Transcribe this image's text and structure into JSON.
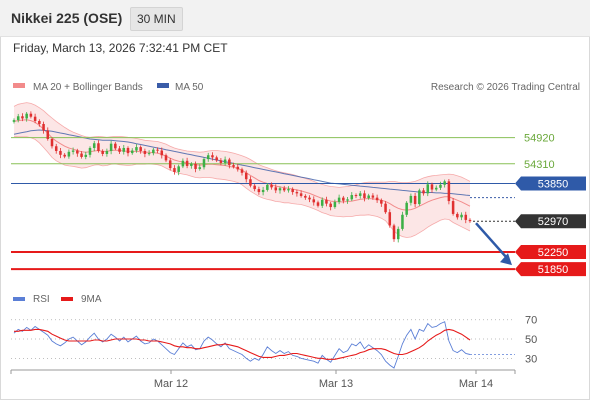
{
  "header": {
    "title": "Nikkei 225 (OSE)",
    "interval": "30 MIN"
  },
  "timestamp": "Friday, March 13, 2026 7:32:41 PM CET",
  "colors": {
    "bollinger": "#f28b8b",
    "ma50": "#3a5ca8",
    "green_level": "#88c057",
    "pivot": "#2f5aa8",
    "support": "#e61a1a",
    "up": "#3cb046",
    "down": "#e03030",
    "rsi": "#5b7fd6",
    "rsi_ma": "#e61a1a"
  },
  "chart_data": [
    {
      "type": "candlestick",
      "title": "",
      "legend": {
        "placement": "top-left",
        "items": [
          {
            "name": "MA 20 + Bollinger Bands",
            "color": "#f28b8b"
          },
          {
            "name": "MA 50",
            "color": "#3a5ca8"
          }
        ]
      },
      "credit": "Research © 2026 Trading Central",
      "ylim": [
        51550,
        55800
      ],
      "levels": [
        {
          "value": 54920,
          "label": "54920",
          "kind": "resistance",
          "color": "#88c057"
        },
        {
          "value": 54310,
          "label": "54310",
          "kind": "resistance",
          "color": "#88c057"
        },
        {
          "value": 53850,
          "label": "53850",
          "kind": "pivot",
          "color": "#2f5aa8"
        },
        {
          "value": 52250,
          "label": "52250",
          "kind": "support",
          "color": "#e61a1a"
        },
        {
          "value": 51850,
          "label": "51850",
          "kind": "support",
          "color": "#e61a1a"
        }
      ],
      "last_price": {
        "value": 52970,
        "label": "52970"
      },
      "forecast_arrow": {
        "from": 52970,
        "to": 51850
      },
      "x_ticks": [
        "Mar 12",
        "Mar 13",
        "Mar 14"
      ],
      "close": [
        55330,
        55420,
        55370,
        55480,
        55410,
        55310,
        55240,
        55090,
        54890,
        54720,
        54610,
        54520,
        54480,
        54590,
        54620,
        54550,
        54470,
        54520,
        54680,
        54790,
        54610,
        54540,
        54610,
        54780,
        54670,
        54590,
        54680,
        54560,
        54620,
        54700,
        54610,
        54540,
        54560,
        54640,
        54620,
        54510,
        54390,
        54210,
        54120,
        54250,
        54380,
        54260,
        54310,
        54190,
        54230,
        54420,
        54510,
        54460,
        54390,
        54330,
        54410,
        54280,
        54240,
        54180,
        54100,
        53950,
        53800,
        53720,
        53650,
        53700,
        53820,
        53760,
        53690,
        53740,
        53690,
        53720,
        53650,
        53620,
        53560,
        53520,
        53480,
        53410,
        53330,
        53470,
        53380,
        53300,
        53420,
        53520,
        53450,
        53480,
        53580,
        53560,
        53620,
        53510,
        53570,
        53520,
        53460,
        53380,
        53180,
        52870,
        52550,
        52790,
        53120,
        53400,
        53560,
        53370,
        53690,
        53620,
        53830,
        53710,
        53750,
        53820,
        53900,
        53440,
        53140,
        53060,
        53120,
        53000,
        52970
      ],
      "bb_mid": [
        55300,
        55320,
        55330,
        55340,
        55320,
        55280,
        55210,
        55120,
        55020,
        54920,
        54840,
        54780,
        54720,
        54680,
        54650,
        54620,
        54590,
        54580,
        54590,
        54610,
        54620,
        54600,
        54600,
        54620,
        54630,
        54620,
        54610,
        54600,
        54600,
        54600,
        54590,
        54580,
        54580,
        54570,
        54560,
        54530,
        54490,
        54440,
        54400,
        54370,
        54350,
        54330,
        54310,
        54290,
        54280,
        54290,
        54300,
        54300,
        54290,
        54280,
        54270,
        54250,
        54230,
        54200,
        54160,
        54100,
        54040,
        53980,
        53920,
        53880,
        53850,
        53820,
        53790,
        53770,
        53750,
        53740,
        53720,
        53700,
        53680,
        53650,
        53620,
        53580,
        53540,
        53500,
        53470,
        53440,
        53430,
        53420,
        53420,
        53430,
        53440,
        53460,
        53480,
        53490,
        53500,
        53490,
        53480,
        53460,
        53430,
        53380,
        53320,
        53270,
        53240,
        53230,
        53240,
        53270,
        53320,
        53370,
        53420,
        53460,
        53490,
        53520,
        53540,
        53540,
        53500,
        53460,
        53420,
        53370,
        53320
      ],
      "bb_upper": [
        55650,
        55700,
        55720,
        55740,
        55720,
        55680,
        55620,
        55550,
        55460,
        55380,
        55300,
        55230,
        55160,
        55100,
        55050,
        55010,
        54970,
        54940,
        54930,
        54940,
        54950,
        54940,
        54930,
        54940,
        54950,
        54950,
        54940,
        54930,
        54920,
        54900,
        54880,
        54860,
        54850,
        54840,
        54830,
        54800,
        54770,
        54720,
        54680,
        54650,
        54630,
        54610,
        54600,
        54590,
        54580,
        54590,
        54610,
        54620,
        54620,
        54610,
        54600,
        54580,
        54560,
        54530,
        54500,
        54460,
        54410,
        54350,
        54290,
        54250,
        54220,
        54180,
        54150,
        54120,
        54100,
        54080,
        54060,
        54030,
        54000,
        53970,
        53940,
        53900,
        53860,
        53830,
        53800,
        53780,
        53770,
        53760,
        53770,
        53780,
        53800,
        53820,
        53850,
        53870,
        53880,
        53880,
        53880,
        53880,
        53880,
        53900,
        53900,
        53880,
        53870,
        53870,
        53880,
        53900,
        53940,
        53980,
        54010,
        54030,
        54040,
        54050,
        54060,
        54070,
        54060,
        54030,
        54000,
        53950,
        53900
      ],
      "bb_lower": [
        54950,
        54940,
        54940,
        54940,
        54920,
        54880,
        54800,
        54690,
        54580,
        54460,
        54380,
        54330,
        54280,
        54260,
        54250,
        54230,
        54210,
        54220,
        54250,
        54280,
        54290,
        54260,
        54270,
        54300,
        54310,
        54290,
        54280,
        54270,
        54280,
        54300,
        54300,
        54300,
        54310,
        54300,
        54290,
        54260,
        54210,
        54160,
        54120,
        54090,
        54070,
        54050,
        54020,
        53990,
        53980,
        53990,
        53990,
        53980,
        53960,
        53950,
        53940,
        53920,
        53900,
        53870,
        53820,
        53740,
        53670,
        53610,
        53550,
        53510,
        53480,
        53460,
        53430,
        53420,
        53400,
        53400,
        53380,
        53370,
        53360,
        53330,
        53300,
        53260,
        53220,
        53170,
        53140,
        53100,
        53090,
        53080,
        53070,
        53080,
        53080,
        53100,
        53110,
        53110,
        53120,
        53100,
        53080,
        53040,
        52980,
        52860,
        52740,
        52660,
        52610,
        52590,
        52600,
        52640,
        52700,
        52760,
        52830,
        52890,
        52940,
        52990,
        53020,
        53010,
        52940,
        52890,
        52840,
        52790,
        52740
      ],
      "ma50": [
        55000,
        55020,
        55040,
        55060,
        55080,
        55090,
        55100,
        55090,
        55080,
        55070,
        55050,
        55030,
        55010,
        54990,
        54970,
        54950,
        54930,
        54910,
        54890,
        54880,
        54870,
        54860,
        54860,
        54860,
        54850,
        54840,
        54830,
        54820,
        54800,
        54780,
        54760,
        54740,
        54720,
        54700,
        54680,
        54660,
        54640,
        54620,
        54600,
        54580,
        54560,
        54540,
        54520,
        54500,
        54480,
        54460,
        54440,
        54420,
        54400,
        54380,
        54360,
        54340,
        54320,
        54300,
        54280,
        54260,
        54240,
        54220,
        54200,
        54180,
        54160,
        54140,
        54120,
        54100,
        54080,
        54060,
        54040,
        54020,
        54000,
        53980,
        53960,
        53940,
        53920,
        53900,
        53880,
        53860,
        53850,
        53840,
        53830,
        53820,
        53810,
        53800,
        53790,
        53780,
        53770,
        53760,
        53750,
        53740,
        53730,
        53720,
        53710,
        53700,
        53690,
        53680,
        53670,
        53660,
        53650,
        53640,
        53640,
        53640,
        53630,
        53630,
        53620,
        53620,
        53610,
        53600,
        53590,
        53580,
        53570
      ]
    },
    {
      "type": "line",
      "title": "",
      "legend": {
        "placement": "top-left",
        "items": [
          {
            "name": "RSI",
            "color": "#5b7fd6"
          },
          {
            "name": "9MA",
            "color": "#e61a1a"
          }
        ]
      },
      "y_ticks": [
        "70",
        "50",
        "30"
      ],
      "ylim": [
        20,
        78
      ],
      "series": [
        {
          "name": "RSI",
          "values": [
            56,
            60,
            58,
            62,
            59,
            63,
            60,
            57,
            54,
            48,
            45,
            43,
            46,
            50,
            52,
            48,
            44,
            47,
            52,
            56,
            50,
            47,
            50,
            55,
            52,
            48,
            52,
            47,
            50,
            53,
            48,
            45,
            46,
            50,
            48,
            44,
            40,
            36,
            34,
            40,
            46,
            42,
            44,
            39,
            40,
            48,
            52,
            49,
            45,
            42,
            46,
            40,
            38,
            36,
            34,
            30,
            27,
            30,
            28,
            34,
            42,
            38,
            35,
            38,
            35,
            37,
            33,
            32,
            30,
            29,
            28,
            27,
            25,
            33,
            29,
            26,
            33,
            40,
            36,
            38,
            45,
            43,
            47,
            40,
            44,
            41,
            38,
            34,
            27,
            23,
            20,
            32,
            45,
            54,
            60,
            50,
            60,
            58,
            66,
            62,
            63,
            66,
            68,
            48,
            38,
            36,
            39,
            35,
            34
          ]
        },
        {
          "name": "9MA",
          "values": [
            58,
            58,
            59,
            59,
            59,
            60,
            60,
            59,
            58,
            55,
            53,
            51,
            49,
            48,
            48,
            48,
            48,
            48,
            48,
            49,
            49,
            48,
            48,
            49,
            50,
            50,
            50,
            50,
            50,
            50,
            49,
            49,
            48,
            48,
            48,
            47,
            46,
            45,
            43,
            42,
            42,
            41,
            41,
            40,
            40,
            41,
            42,
            43,
            44,
            44,
            45,
            44,
            43,
            42,
            40,
            38,
            36,
            34,
            32,
            31,
            31,
            31,
            32,
            33,
            33,
            34,
            35,
            35,
            34,
            33,
            32,
            31,
            30,
            30,
            29,
            29,
            29,
            30,
            31,
            32,
            33,
            34,
            36,
            37,
            39,
            40,
            40,
            40,
            39,
            37,
            35,
            34,
            34,
            35,
            37,
            39,
            41,
            44,
            48,
            51,
            54,
            56,
            59,
            60,
            59,
            57,
            55,
            52,
            49
          ]
        }
      ]
    }
  ]
}
